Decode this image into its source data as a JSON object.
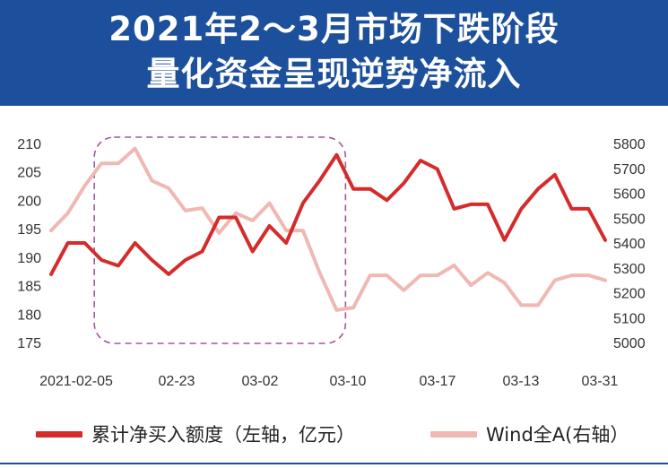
{
  "title": {
    "line1": "2021年2～3月市场下跌阶段",
    "line2": "量化资金呈现逆势净流入"
  },
  "colors": {
    "banner": "#1c4f9c",
    "series_net_buy": "#d52b2b",
    "series_wind": "#f0b8b3",
    "highlight_box": "#a4569a"
  },
  "chart_data": {
    "type": "line",
    "x_tick_labels": [
      "2021-02-05",
      "02-23",
      "03-02",
      "03-10",
      "03-17",
      "03-13",
      "03-31"
    ],
    "x": [
      "2021-02-05",
      "02-08",
      "02-09",
      "02-10",
      "02-18",
      "02-19",
      "02-22",
      "02-23",
      "02-24",
      "02-25",
      "02-26",
      "03-01",
      "03-02",
      "03-03",
      "03-04",
      "03-05",
      "03-08",
      "03-09",
      "03-10",
      "03-11",
      "03-12",
      "03-15",
      "03-16",
      "03-17",
      "03-18",
      "03-19",
      "03-22",
      "03-23",
      "03-24",
      "03-25",
      "03-26",
      "03-29",
      "03-30",
      "03-31"
    ],
    "series": [
      {
        "name": "累计净买入额度（左轴，亿元）",
        "axis": "left",
        "values": [
          187,
          192.5,
          192.5,
          189.5,
          188.5,
          192.5,
          189.5,
          187,
          189.5,
          191,
          197,
          197,
          191,
          195.5,
          192.5,
          199.5,
          203.5,
          208,
          202,
          202,
          200,
          203,
          207,
          205.5,
          198.5,
          199.3,
          199.3,
          193,
          198.5,
          202,
          204.5,
          198.5,
          198.5,
          193
        ]
      },
      {
        "name": "Wind全A(右轴）",
        "axis": "right",
        "values": [
          5450,
          5520,
          5630,
          5720,
          5720,
          5780,
          5650,
          5620,
          5530,
          5540,
          5440,
          5520,
          5490,
          5560,
          5450,
          5450,
          5280,
          5130,
          5140,
          5270,
          5270,
          5210,
          5270,
          5270,
          5310,
          5230,
          5280,
          5240,
          5150,
          5150,
          5250,
          5270,
          5270,
          5250
        ]
      }
    ],
    "y_left": {
      "ticks": [
        "175",
        "180",
        "185",
        "190",
        "195",
        "200",
        "205",
        "210"
      ],
      "ylim": [
        175,
        210
      ]
    },
    "y_right": {
      "ticks": [
        "5000",
        "5100",
        "5200",
        "5300",
        "5400",
        "5500",
        "5600",
        "5700",
        "5800"
      ],
      "ylim": [
        5000,
        5800
      ]
    },
    "highlight": {
      "from": "02-10",
      "to": "03-09"
    },
    "grid": false,
    "legend_position": "bottom"
  }
}
